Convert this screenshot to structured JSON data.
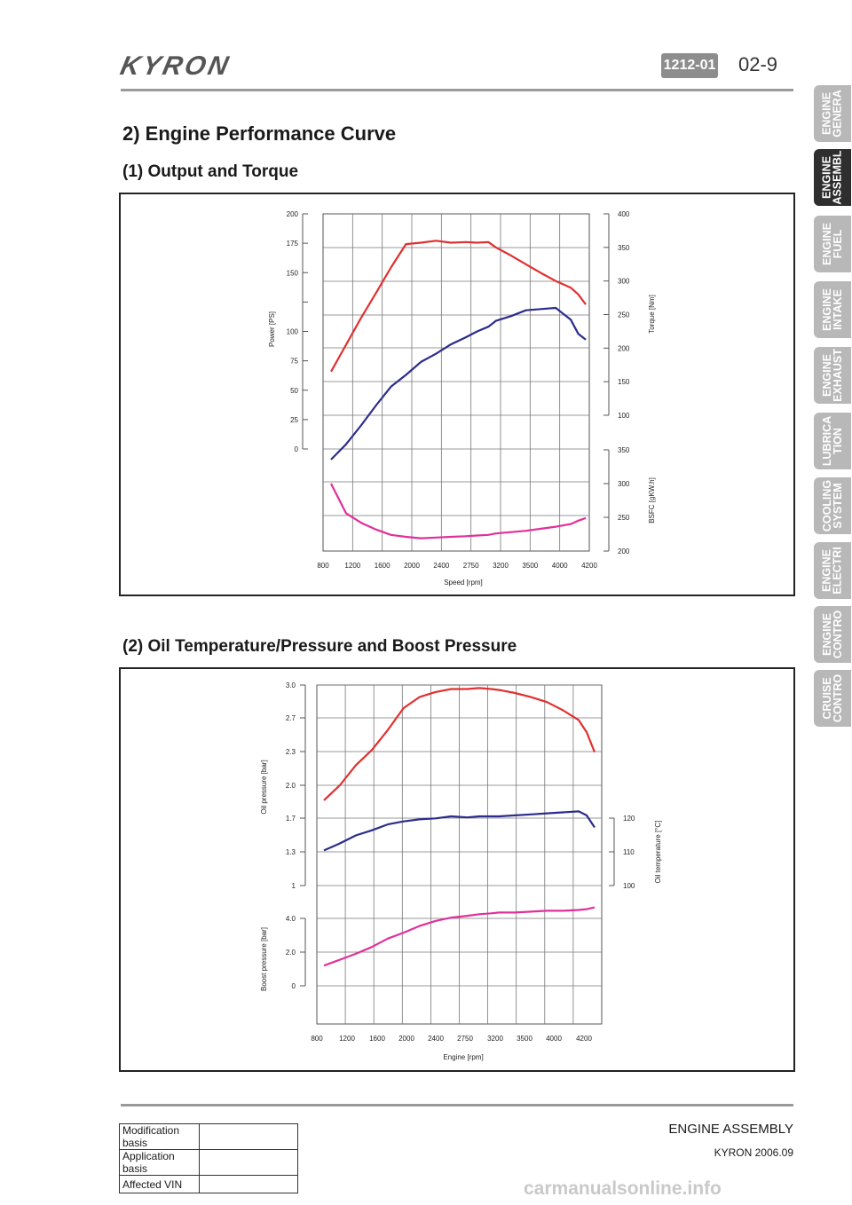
{
  "header": {
    "logo": "KYRON",
    "code": "1212-01",
    "page": "02-9"
  },
  "section_title": "2) Engine Performance Curve",
  "sub1_title": "(1) Output and Torque",
  "sub2_title": "(2) Oil Temperature/Pressure and Boost Pressure",
  "tabs": [
    {
      "label": "ENGINE\nGENERA",
      "active": false
    },
    {
      "label": "ENGINE\nASSEMBL",
      "active": true
    },
    {
      "label": "ENGINE\nFUEL",
      "active": false
    },
    {
      "label": "ENGINE\nINTAKE",
      "active": false
    },
    {
      "label": "ENGINE\nEXHAUST",
      "active": false
    },
    {
      "label": "LUBRICA\nTION",
      "active": false
    },
    {
      "label": "COOLING\nSYSTEM",
      "active": false
    },
    {
      "label": "ENGINE\nELECTRI",
      "active": false
    },
    {
      "label": "ENGINE\nCONTRO",
      "active": false
    },
    {
      "label": "CRUISE\nCONTRO",
      "active": false
    }
  ],
  "footer": {
    "rows": [
      {
        "label": "Modification basis",
        "value": ""
      },
      {
        "label": "Application basis",
        "value": ""
      },
      {
        "label": "Affected VIN",
        "value": ""
      }
    ],
    "title": "ENGINE ASSEMBLY",
    "model": "KYRON 2006.09",
    "watermark": "carmanualsonline.info"
  },
  "chart_data": [
    {
      "type": "line",
      "xlabel": "Speed [rpm]",
      "x_ticks": [
        "800",
        "1200",
        "1600",
        "2000",
        "2400",
        "2750",
        "3200",
        "3500",
        "4000",
        "4200"
      ],
      "xlim": [
        800,
        4200
      ],
      "axes": {
        "power": {
          "label": "Power [PS]",
          "ticks": [
            0,
            25,
            50,
            75,
            100,
            125,
            150,
            175,
            200
          ],
          "tick_labels": [
            "0",
            "25",
            "50",
            "75",
            "100",
            "",
            "150",
            "175",
            "200"
          ],
          "range": [
            0,
            200
          ]
        },
        "torque": {
          "label": "Torque [Nm]",
          "ticks": [
            100,
            150,
            200,
            250,
            300,
            350,
            400
          ],
          "range": [
            100,
            400
          ]
        },
        "bsfc": {
          "label": "BSFC [gKW.h]",
          "ticks": [
            200,
            250,
            300,
            350
          ],
          "range": [
            200,
            350
          ]
        }
      },
      "series": [
        {
          "axis": "torque",
          "color": "#e03030",
          "x": [
            800,
            1000,
            1200,
            1400,
            1600,
            1800,
            2000,
            2200,
            2400,
            2600,
            2750,
            2900,
            3000,
            3200,
            3400,
            3600,
            3800,
            4000,
            4100,
            4200
          ],
          "y": [
            165,
            205,
            245,
            282,
            320,
            355,
            357,
            360,
            357,
            358,
            357,
            358,
            350,
            338,
            325,
            312,
            300,
            290,
            280,
            265
          ]
        },
        {
          "axis": "power",
          "color": "#2c2c8c",
          "x": [
            800,
            1000,
            1200,
            1400,
            1600,
            1800,
            2000,
            2200,
            2400,
            2600,
            2750,
            2900,
            3000,
            3200,
            3400,
            3600,
            3800,
            4000,
            4100,
            4200
          ],
          "y": [
            -9,
            4,
            20,
            37,
            53,
            63,
            74,
            81,
            89,
            95,
            100,
            104,
            109,
            113,
            118,
            119,
            120,
            110,
            98,
            93
          ]
        },
        {
          "axis": "bsfc",
          "color": "#e0309a",
          "x": [
            800,
            1000,
            1200,
            1400,
            1600,
            1800,
            2000,
            2200,
            2400,
            2600,
            2750,
            2900,
            3000,
            3200,
            3400,
            3600,
            3800,
            4000,
            4100,
            4200
          ],
          "y": [
            300,
            256,
            242,
            232,
            224,
            221,
            219,
            220,
            221,
            222,
            223,
            224,
            226,
            228,
            230,
            233,
            236,
            240,
            245,
            249
          ]
        }
      ]
    },
    {
      "type": "line",
      "xlabel": "Engine [rpm]",
      "x_ticks": [
        "800",
        "1200",
        "1600",
        "2000",
        "2400",
        "2750",
        "3200",
        "3500",
        "4000",
        "4200"
      ],
      "xlim": [
        800,
        4200
      ],
      "axes": {
        "oil_pressure": {
          "label": "Oil pressure [bar]",
          "ticks": [
            "1",
            "1.3",
            "1.7",
            "2.0",
            "2.3",
            "2.7",
            "3.0"
          ]
        },
        "boost_pressure": {
          "label": "Boost pressure [bar]",
          "ticks": [
            "0",
            "2.0",
            "4.0"
          ]
        },
        "oil_temperature": {
          "label": "Oil temperature [°C]",
          "ticks": [
            "100",
            "110",
            "120"
          ]
        }
      },
      "series": [
        {
          "axis": "oil_pressure",
          "color": "#e03030",
          "x": [
            800,
            1000,
            1200,
            1400,
            1600,
            1800,
            2000,
            2200,
            2400,
            2600,
            2750,
            2900,
            3000,
            3200,
            3400,
            3600,
            3800,
            4000,
            4100,
            4200
          ],
          "y": [
            1.85,
            2.0,
            2.2,
            2.35,
            2.55,
            2.77,
            2.88,
            2.93,
            2.96,
            2.96,
            2.97,
            2.96,
            2.95,
            2.92,
            2.88,
            2.83,
            2.75,
            2.65,
            2.53,
            2.33
          ]
        },
        {
          "axis": "oil_pressure",
          "color": "#2c2c8c",
          "x": [
            800,
            1000,
            1200,
            1400,
            1600,
            1800,
            2000,
            2200,
            2400,
            2600,
            2750,
            2900,
            3000,
            3200,
            3400,
            3600,
            3800,
            4000,
            4100,
            4200
          ],
          "y": [
            1.35,
            1.42,
            1.5,
            1.55,
            1.61,
            1.64,
            1.66,
            1.67,
            1.69,
            1.68,
            1.69,
            1.69,
            1.69,
            1.7,
            1.71,
            1.72,
            1.73,
            1.74,
            1.7,
            1.58
          ]
        },
        {
          "axis": "boost_pressure",
          "color": "#e0309a",
          "x": [
            800,
            1000,
            1200,
            1400,
            1600,
            1800,
            2000,
            2200,
            2400,
            2600,
            2750,
            2900,
            3000,
            3200,
            3400,
            3600,
            3800,
            4000,
            4100,
            4200
          ],
          "y": [
            1.2,
            1.55,
            1.9,
            2.3,
            2.8,
            3.15,
            3.55,
            3.85,
            4.05,
            4.15,
            4.25,
            4.3,
            4.35,
            4.35,
            4.4,
            4.45,
            4.45,
            4.5,
            4.55,
            4.65
          ]
        }
      ]
    }
  ]
}
